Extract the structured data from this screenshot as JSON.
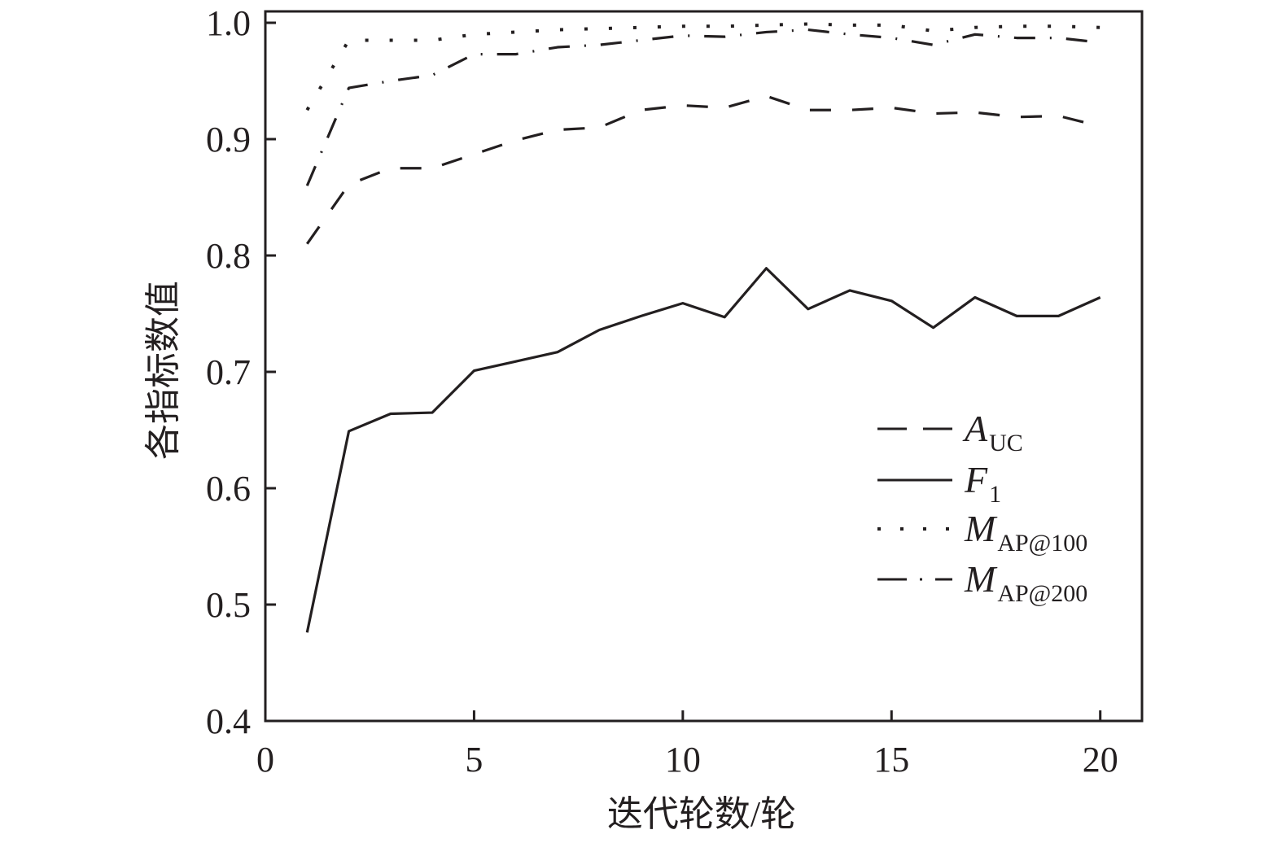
{
  "chart_data": {
    "type": "line",
    "title": "",
    "xlabel": "迭代轮数/轮",
    "ylabel": "各指标数值",
    "xlim": [
      0,
      21
    ],
    "ylim": [
      0.4,
      1.0
    ],
    "xticks": [
      0,
      5,
      10,
      15,
      20
    ],
    "xtick_labels": [
      "0",
      "5",
      "10",
      "15",
      "20"
    ],
    "yticks": [
      0.4,
      0.5,
      0.6,
      0.7,
      0.8,
      0.9,
      1.0
    ],
    "ytick_labels": [
      "0.4",
      "0.5",
      "0.6",
      "0.7",
      "0.8",
      "0.9",
      "1.0"
    ],
    "grid": false,
    "legend_position": "center-right",
    "x": [
      1,
      2,
      3,
      4,
      5,
      6,
      7,
      8,
      9,
      10,
      11,
      12,
      13,
      14,
      15,
      16,
      17,
      18,
      19,
      20
    ],
    "series": [
      {
        "name": "A_UC",
        "label_main": "A",
        "label_sub": "UC",
        "style": "dashed",
        "values": [
          0.81,
          0.861,
          0.875,
          0.875,
          0.887,
          0.899,
          0.908,
          0.91,
          0.925,
          0.929,
          0.927,
          0.937,
          0.925,
          0.925,
          0.927,
          0.922,
          0.923,
          0.919,
          0.92,
          0.911
        ]
      },
      {
        "name": "F_1",
        "label_main": "F",
        "label_sub": "1",
        "style": "solid",
        "values": [
          0.476,
          0.649,
          0.664,
          0.665,
          0.701,
          0.709,
          0.717,
          0.736,
          0.748,
          0.759,
          0.747,
          0.789,
          0.754,
          0.77,
          0.761,
          0.738,
          0.764,
          0.748,
          0.748,
          0.764
        ]
      },
      {
        "name": "M_AP@100",
        "label_main": "M",
        "label_sub": "AP@100",
        "style": "dotted",
        "values": [
          0.925,
          0.985,
          0.985,
          0.985,
          0.99,
          0.992,
          0.994,
          0.995,
          0.996,
          0.997,
          0.997,
          0.998,
          0.999,
          0.998,
          0.998,
          0.993,
          0.996,
          0.997,
          0.997,
          0.996
        ]
      },
      {
        "name": "M_AP@200",
        "label_main": "M",
        "label_sub": "AP@200",
        "style": "dashdot",
        "values": [
          0.86,
          0.944,
          0.95,
          0.955,
          0.973,
          0.973,
          0.979,
          0.981,
          0.985,
          0.989,
          0.988,
          0.992,
          0.994,
          0.99,
          0.987,
          0.981,
          0.99,
          0.987,
          0.987,
          0.983
        ]
      }
    ]
  }
}
